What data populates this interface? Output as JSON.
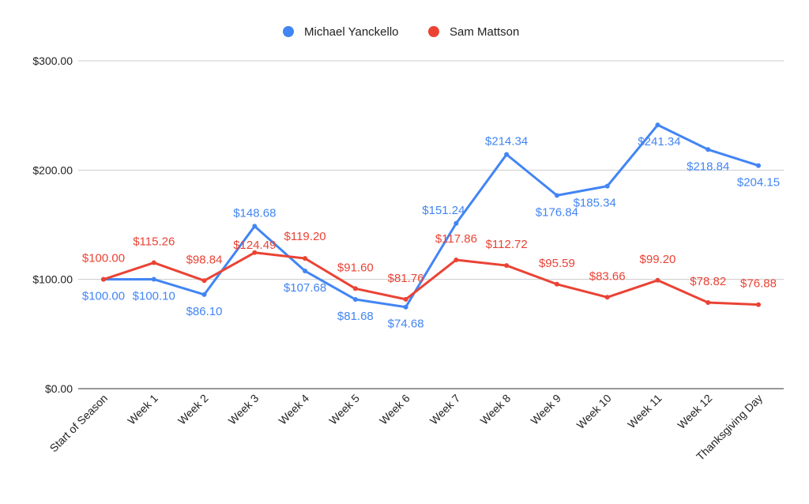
{
  "chart_data": {
    "type": "line",
    "title": "",
    "xlabel": "",
    "ylabel": "",
    "ylim": [
      0,
      300
    ],
    "yticks": [
      "$0.00",
      "$100.00",
      "$200.00",
      "$300.00"
    ],
    "ytick_values": [
      0,
      100,
      200,
      300
    ],
    "grid": true,
    "legend_position": "top-center",
    "categories": [
      "Start of Season",
      "Week 1",
      "Week 2",
      "Week 3",
      "Week 4",
      "Week 5",
      "Week 6",
      "Week 7",
      "Week 8",
      "Week 9",
      "Week 10",
      "Week 11",
      "Week 12",
      "Thanksgiving Day"
    ],
    "series": [
      {
        "name": "Michael Yanckello",
        "color": "#4285f4",
        "values": [
          100.0,
          100.1,
          86.1,
          148.68,
          107.68,
          81.68,
          74.68,
          151.24,
          214.34,
          176.84,
          185.34,
          241.34,
          218.84,
          204.15
        ],
        "labels": [
          "$100.00",
          "$100.10",
          "$86.10",
          "$148.68",
          "$107.68",
          "$81.68",
          "$74.68",
          "$151.24",
          "$214.34",
          "$176.84",
          "$185.34",
          "$241.34",
          "$218.84",
          "$204.15"
        ]
      },
      {
        "name": "Sam Mattson",
        "color": "#ea4335",
        "values": [
          100.0,
          115.26,
          98.84,
          124.49,
          119.2,
          91.6,
          81.76,
          117.86,
          112.72,
          95.59,
          83.66,
          99.2,
          78.82,
          76.88
        ],
        "labels": [
          "$100.00",
          "$115.26",
          "$98.84",
          "$124.49",
          "$119.20",
          "$91.60",
          "$81.76",
          "$117.86",
          "$112.72",
          "$95.59",
          "$83.66",
          "$99.20",
          "$78.82",
          "$76.88"
        ]
      }
    ]
  }
}
